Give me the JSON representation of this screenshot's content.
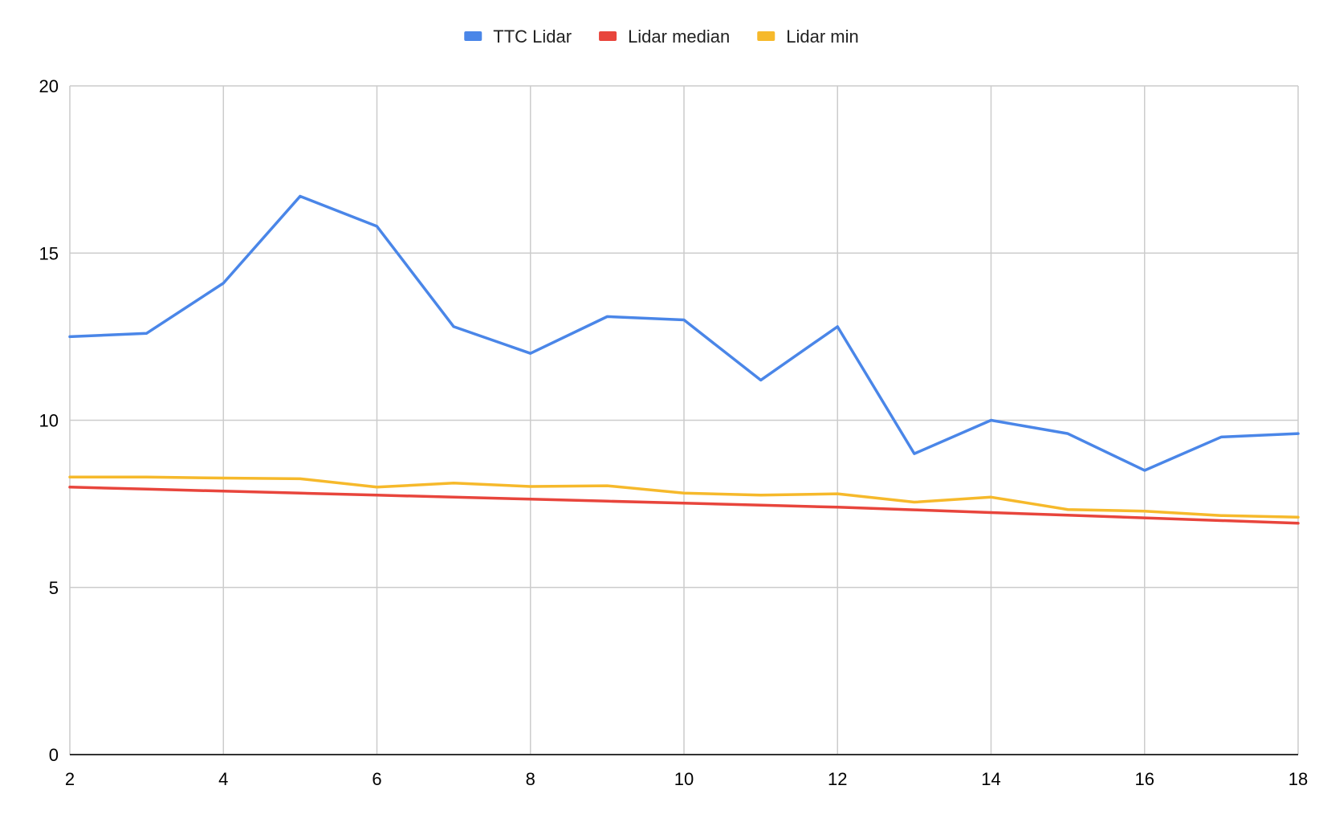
{
  "chart_data": {
    "type": "line",
    "title": "",
    "xlabel": "",
    "ylabel": "",
    "xlim": [
      2,
      18
    ],
    "ylim": [
      0,
      20
    ],
    "x_ticks": [
      2,
      4,
      6,
      8,
      10,
      12,
      14,
      16,
      18
    ],
    "y_ticks": [
      0,
      5,
      10,
      15,
      20
    ],
    "grid": true,
    "legend_position": "top-center",
    "x": [
      2,
      3,
      4,
      5,
      6,
      7,
      8,
      9,
      10,
      11,
      12,
      13,
      14,
      15,
      16,
      17,
      18
    ],
    "series": [
      {
        "name": "TTC Lidar",
        "color": "#4a86e8",
        "values": [
          12.5,
          12.6,
          14.1,
          16.7,
          15.8,
          12.8,
          12.0,
          13.1,
          13.0,
          11.2,
          12.8,
          9.0,
          10.0,
          9.6,
          8.5,
          9.5,
          9.6
        ]
      },
      {
        "name": "Lidar median",
        "color": "#e8453c",
        "values": [
          8.0,
          7.94,
          7.88,
          7.82,
          7.76,
          7.7,
          7.64,
          7.58,
          7.52,
          7.46,
          7.4,
          7.32,
          7.24,
          7.16,
          7.08,
          7.0,
          6.92
        ]
      },
      {
        "name": "Lidar min",
        "color": "#f6b92b",
        "values": [
          8.3,
          8.3,
          8.27,
          8.25,
          8.0,
          8.12,
          8.02,
          8.04,
          7.82,
          7.76,
          7.8,
          7.55,
          7.7,
          7.33,
          7.28,
          7.15,
          7.1
        ]
      }
    ]
  }
}
